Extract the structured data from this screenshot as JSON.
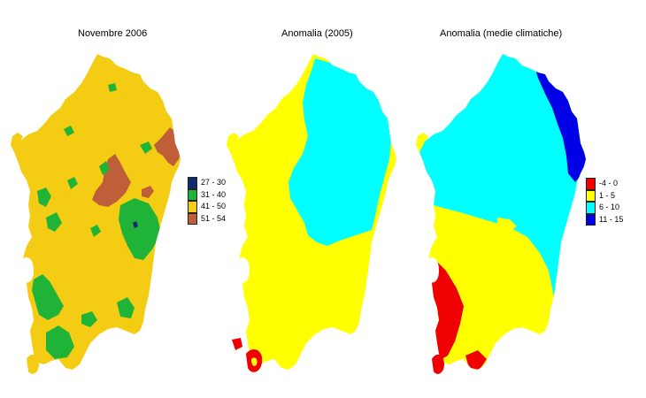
{
  "panels": [
    {
      "title": "Novembre 2006",
      "legend": [
        {
          "label": "27 - 30",
          "color": "#102a6e"
        },
        {
          "label": "31 - 40",
          "color": "#1fb437"
        },
        {
          "label": "41 - 50",
          "color": "#f5cc14"
        },
        {
          "label": "51 - 54",
          "color": "#bf5f3a"
        }
      ]
    },
    {
      "title": "Anomalia (2005)",
      "legend": []
    },
    {
      "title": "Anomalia (medie climatiche)",
      "legend": [
        {
          "label": "-4 - 0",
          "color": "#f00000"
        },
        {
          "label": "1 - 5",
          "color": "#ffff00"
        },
        {
          "label": "6 - 10",
          "color": "#00ffff"
        },
        {
          "label": "11 - 15",
          "color": "#0000e6"
        }
      ]
    }
  ],
  "colors": {
    "sardinia_base_1": "#f5cc14",
    "green": "#1fb437",
    "brown": "#bf5f3a",
    "navy": "#102a6e",
    "yellow": "#ffff00",
    "cyan": "#00ffff",
    "red": "#f00000",
    "blue": "#0000e6"
  }
}
